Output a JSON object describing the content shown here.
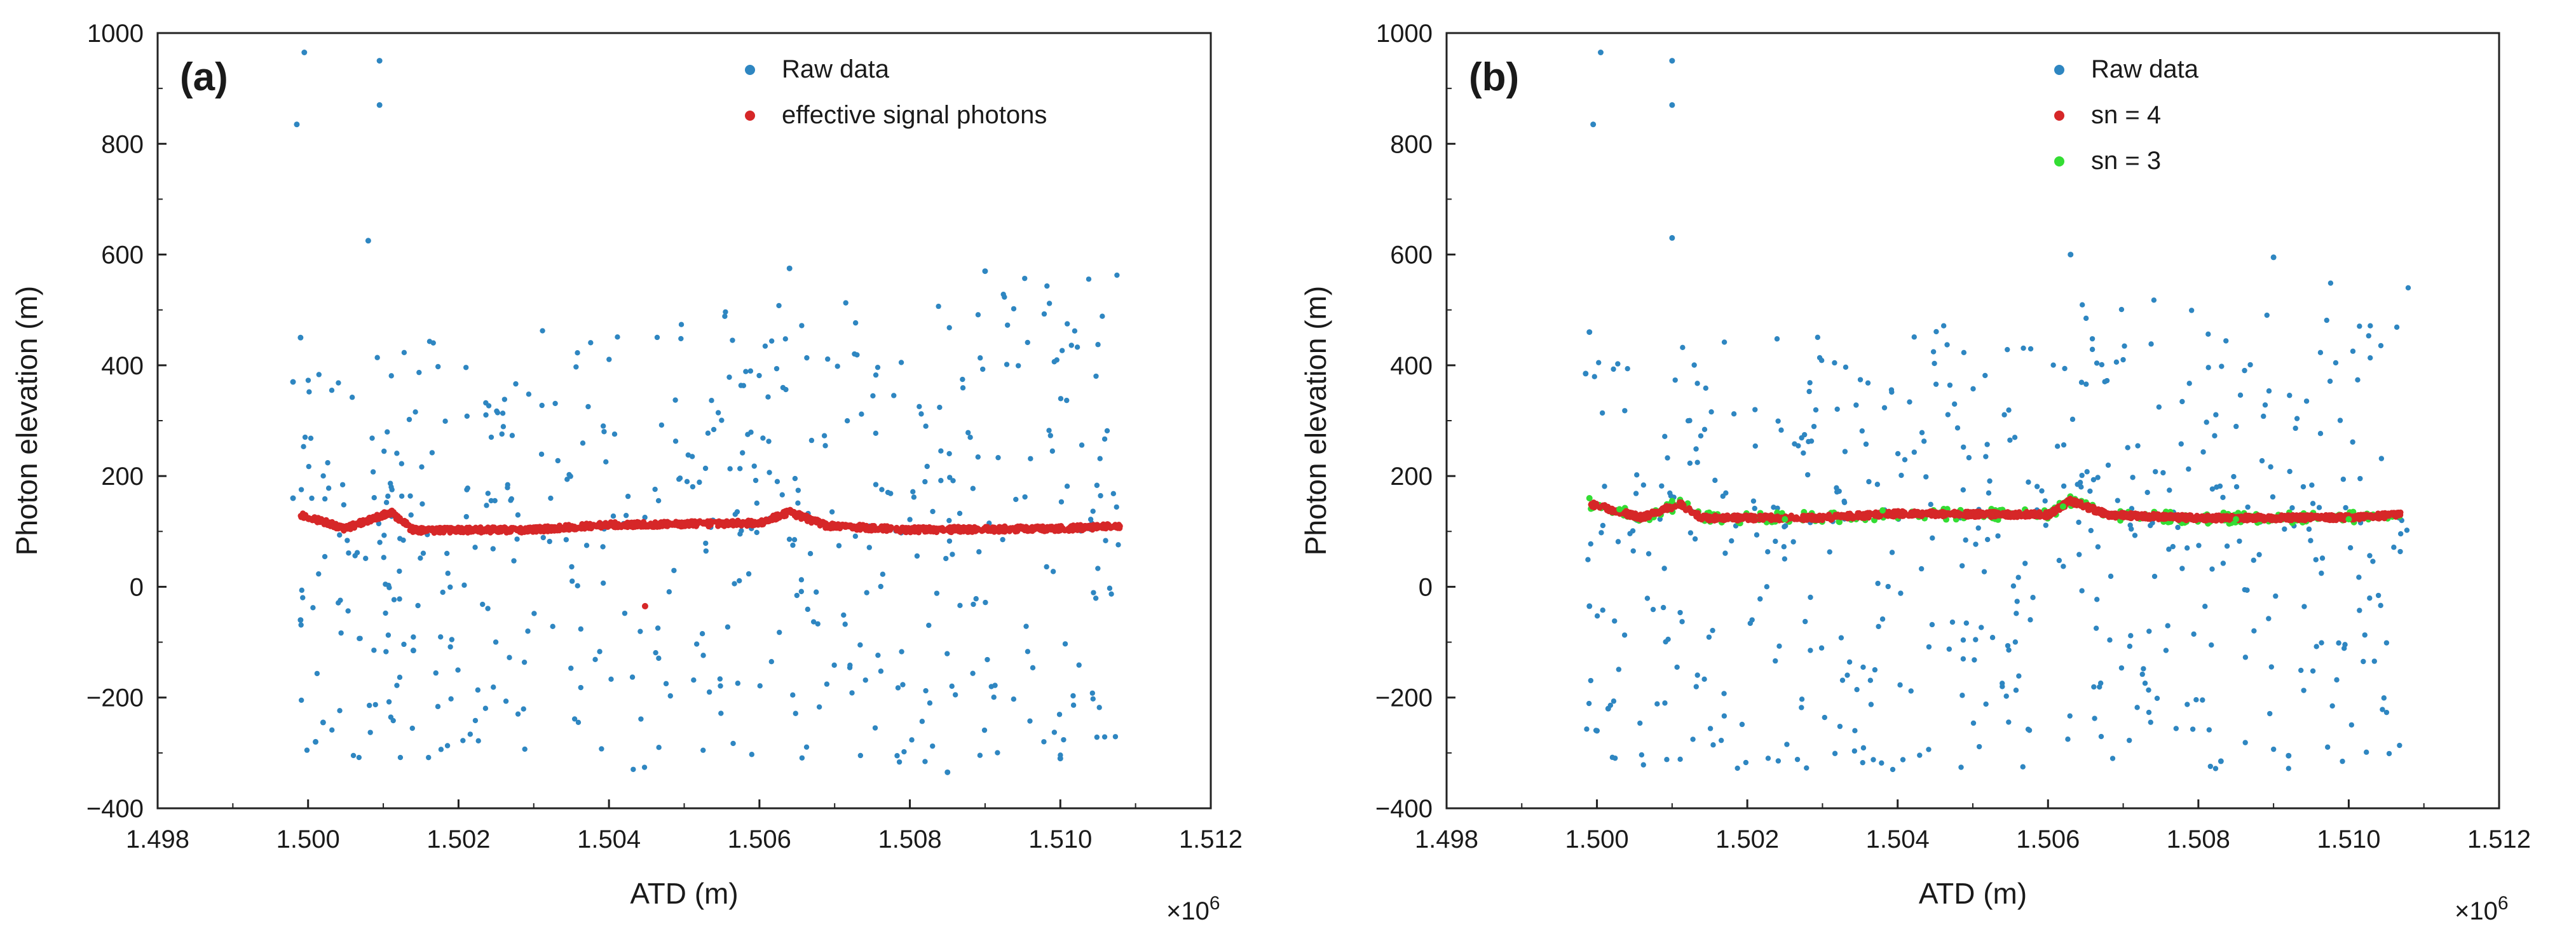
{
  "chart_data": [
    {
      "type": "scatter",
      "panel_label": "(a)",
      "xlabel": "ATD (m)",
      "ylabel": "Photon elevation (m)",
      "x_multiplier": "×10",
      "x_multiplier_exp": "6",
      "xlim": [
        1.498,
        1.512
      ],
      "ylim": [
        -400,
        1000
      ],
      "x_ticks": [
        "1.498",
        "1.500",
        "1.502",
        "1.504",
        "1.506",
        "1.508",
        "1.510",
        "1.512"
      ],
      "y_ticks": [
        "1000",
        "800",
        "600",
        "400",
        "200",
        "0",
        "−200",
        "−400"
      ],
      "legend_position": "top-right",
      "series": [
        {
          "name": "Raw data",
          "color": "#2e86c1",
          "kind": "raw",
          "sample_points": [
            [
              1.49995,
              965
            ],
            [
              1.50095,
              950
            ],
            [
              1.50095,
              870
            ],
            [
              1.49985,
              835
            ],
            [
              1.5008,
              625
            ],
            [
              1.4999,
              450
            ],
            [
              1.4998,
              370
            ],
            [
              1.4998,
              160
            ],
            [
              1.4999,
              -60
            ],
            [
              1.5001,
              -280
            ],
            [
              1.5002,
              -245
            ],
            [
              1.5014,
              -115
            ],
            [
              1.5064,
              575
            ],
            [
              1.509,
              570
            ],
            [
              1.5085,
              -335
            ],
            [
              1.51,
              -310
            ]
          ]
        },
        {
          "name": "effective signal photons",
          "color": "#d62728",
          "kind": "signal",
          "sample_points": [
            [
              1.4999,
              130
            ],
            [
              1.5005,
              105
            ],
            [
              1.5011,
              135
            ],
            [
              1.5014,
              102
            ],
            [
              1.503,
              103
            ],
            [
              1.504,
              112
            ],
            [
              1.506,
              115
            ],
            [
              1.5064,
              135
            ],
            [
              1.5069,
              110
            ],
            [
              1.508,
              103
            ],
            [
              1.51,
              105
            ],
            [
              1.5108,
              110
            ],
            [
              1.50448,
              -35
            ]
          ]
        }
      ]
    },
    {
      "type": "scatter",
      "panel_label": "(b)",
      "xlabel": "ATD (m)",
      "ylabel": "Photon elevation (m)",
      "x_multiplier": "×10",
      "x_multiplier_exp": "6",
      "xlim": [
        1.498,
        1.512
      ],
      "ylim": [
        -400,
        1000
      ],
      "x_ticks": [
        "1.498",
        "1.500",
        "1.502",
        "1.504",
        "1.506",
        "1.508",
        "1.510",
        "1.512"
      ],
      "y_ticks": [
        "1000",
        "800",
        "600",
        "400",
        "200",
        "0",
        "−200",
        "−400"
      ],
      "legend_position": "top-center",
      "series": [
        {
          "name": "Raw data",
          "color": "#2e86c1",
          "kind": "raw",
          "sample_points": [
            [
              1.50005,
              965
            ],
            [
              1.501,
              950
            ],
            [
              1.501,
              870
            ],
            [
              1.49995,
              835
            ],
            [
              1.501,
              630
            ],
            [
              1.4999,
              460
            ],
            [
              1.49985,
              385
            ],
            [
              1.4999,
              -35
            ],
            [
              1.5,
              -260
            ],
            [
              1.50015,
              -220
            ],
            [
              1.5063,
              600
            ],
            [
              1.509,
              595
            ],
            [
              1.5083,
              -315
            ],
            [
              1.5092,
              -305
            ]
          ]
        },
        {
          "name": "sn = 4",
          "color": "#d62728",
          "kind": "signal",
          "sample_points": [
            [
              1.4999,
              150
            ],
            [
              1.5006,
              125
            ],
            [
              1.5011,
              150
            ],
            [
              1.5014,
              124
            ],
            [
              1.503,
              125
            ],
            [
              1.504,
              132
            ],
            [
              1.506,
              130
            ],
            [
              1.5063,
              155
            ],
            [
              1.5068,
              130
            ],
            [
              1.508,
              124
            ],
            [
              1.51,
              125
            ],
            [
              1.5107,
              130
            ]
          ]
        },
        {
          "name": "sn = 3",
          "color": "#33dd33",
          "kind": "secondary",
          "sample_points": [
            [
              1.4999,
              160
            ],
            [
              1.5003,
              140
            ],
            [
              1.501,
              155
            ],
            [
              1.5025,
              122
            ],
            [
              1.5038,
              138
            ],
            [
              1.5062,
              145
            ],
            [
              1.5085,
              122
            ],
            [
              1.51,
              122
            ]
          ]
        }
      ]
    }
  ]
}
